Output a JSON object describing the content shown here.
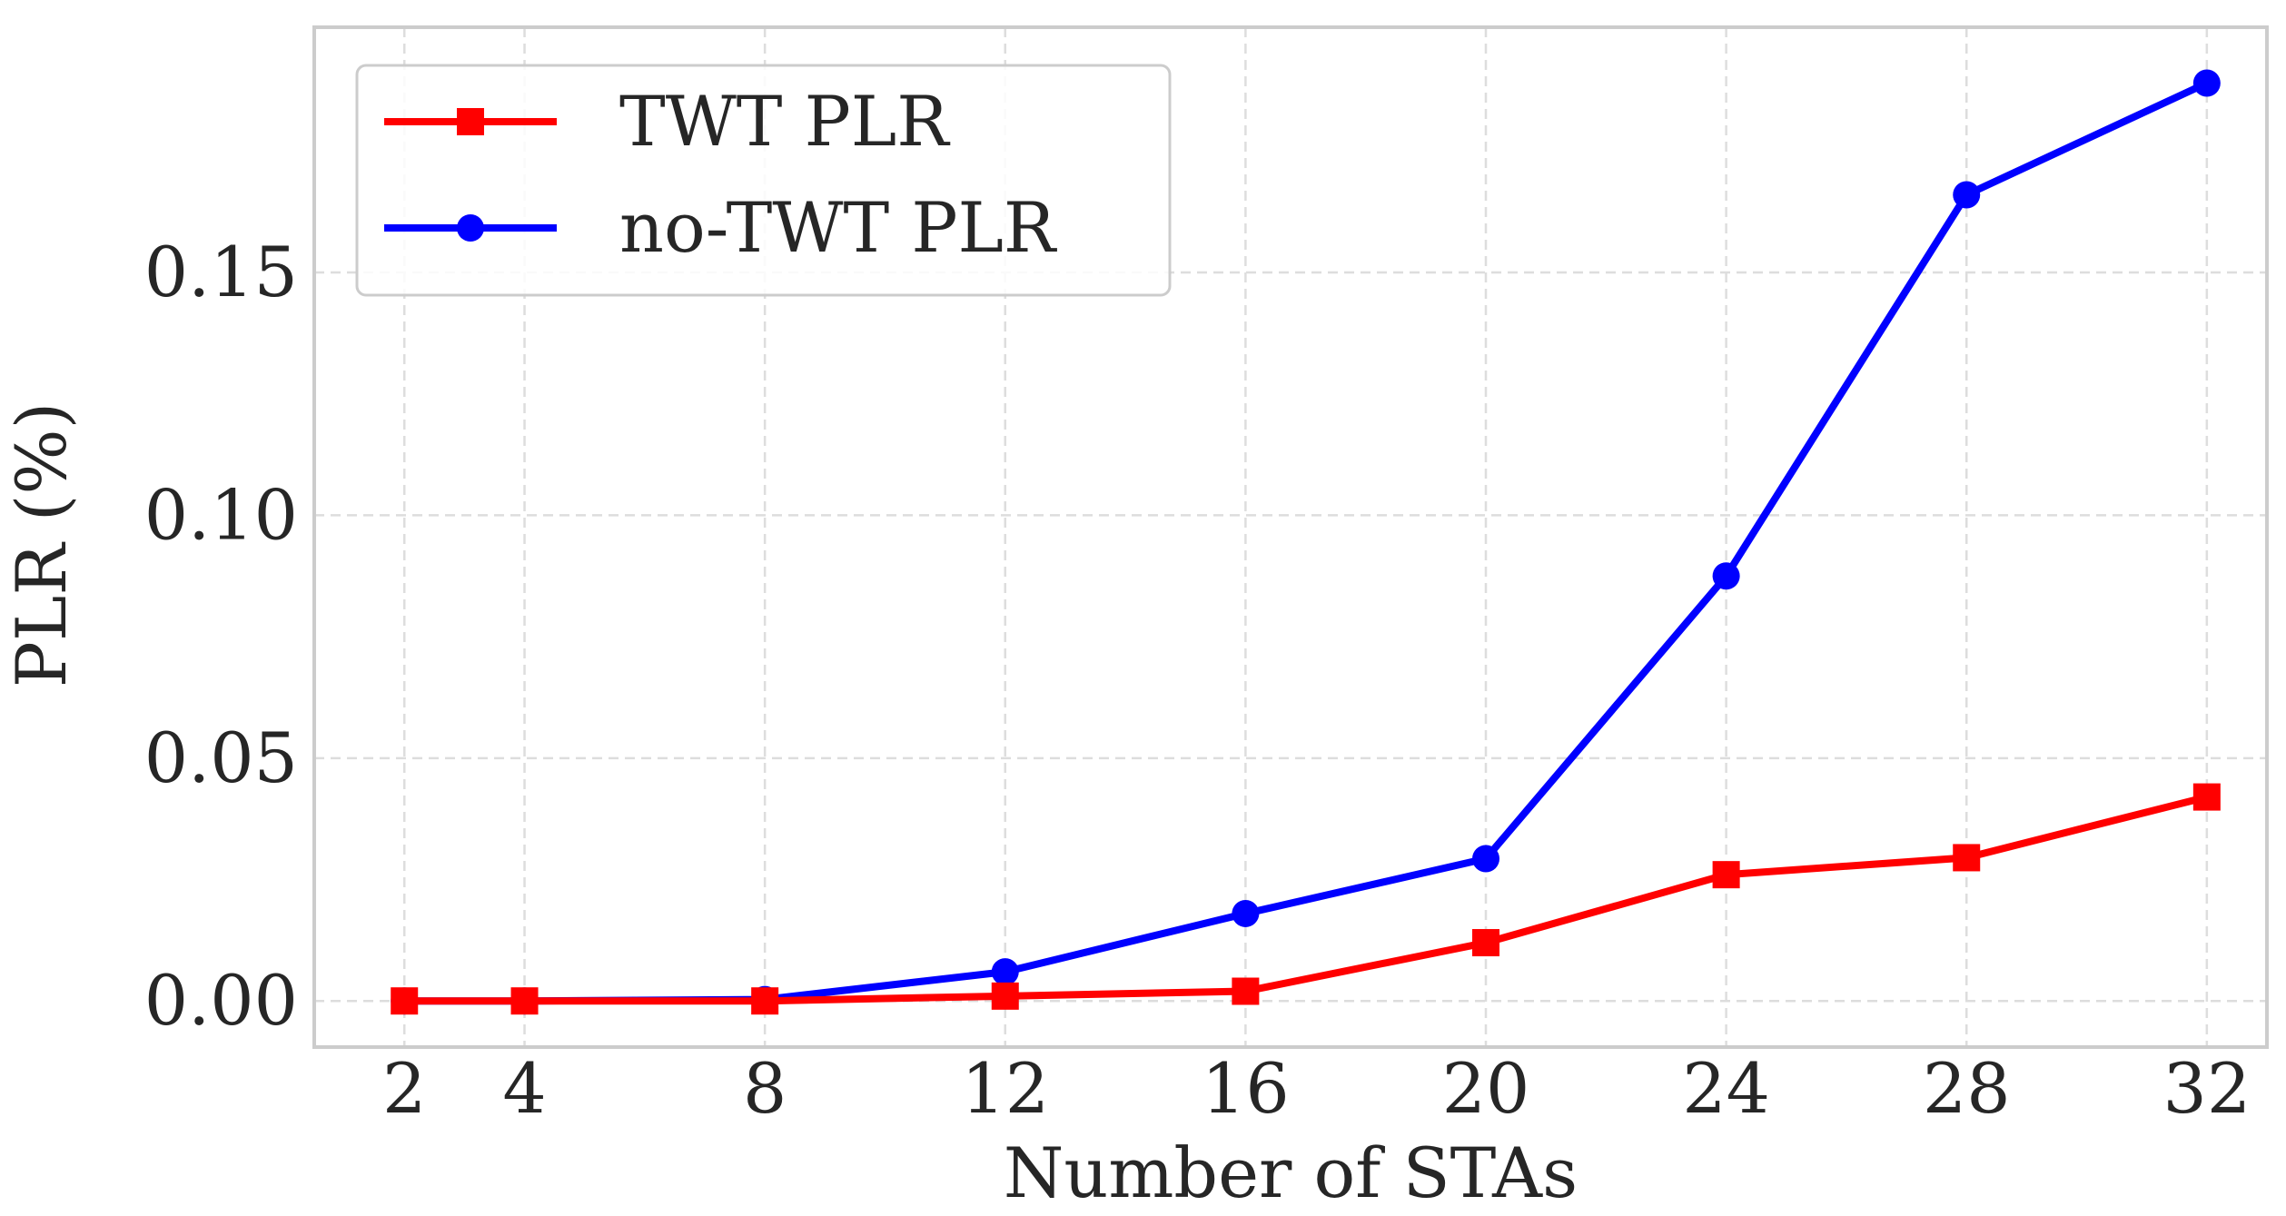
{
  "chart_data": {
    "type": "line",
    "xlabel": "Number of STAs",
    "ylabel": "PLR (%)",
    "x": [
      2,
      4,
      8,
      12,
      16,
      20,
      24,
      28,
      32
    ],
    "xticks": [
      2,
      4,
      8,
      12,
      16,
      20,
      24,
      28,
      32
    ],
    "xlim": [
      0.5,
      33
    ],
    "yticks": [
      "0.00",
      "0.05",
      "0.10",
      "0.15"
    ],
    "ylim": [
      -0.0095,
      0.2005
    ],
    "grid": true,
    "legend_position": "top-left",
    "series": [
      {
        "name": "TWT PLR",
        "color": "#ff0000",
        "marker": "square",
        "values": [
          0.0,
          0.0,
          0.0,
          0.001,
          0.002,
          0.012,
          0.026,
          0.0295,
          0.042
        ]
      },
      {
        "name": "no-TWT PLR",
        "color": "#0000ff",
        "marker": "circle",
        "values": [
          0.0,
          0.0,
          0.0003,
          0.006,
          0.018,
          0.0293,
          0.0875,
          0.166,
          0.189
        ]
      }
    ]
  }
}
